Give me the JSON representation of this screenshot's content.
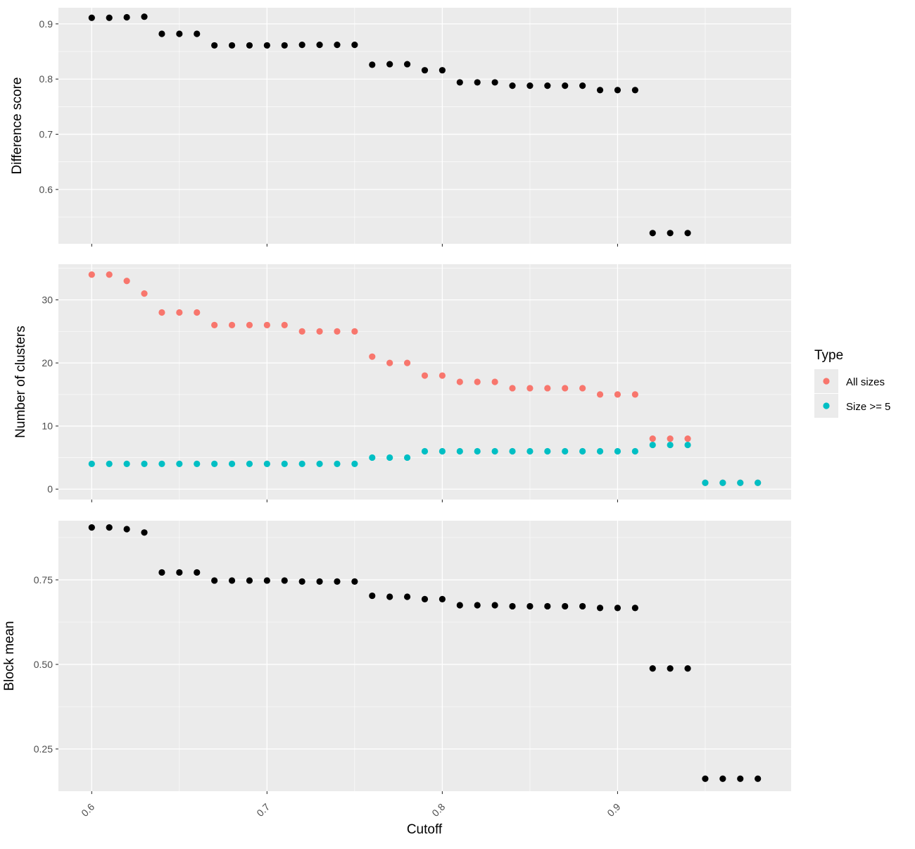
{
  "chart_data": {
    "type": "scatter",
    "layout": "faceted-vertical",
    "shared_x": true,
    "xlabel": "Cutoff",
    "xlim": [
      0.581,
      0.999
    ],
    "x_ticks": [
      0.6,
      0.7,
      0.8,
      0.9
    ],
    "x_tick_labels": [
      "0.6",
      "0.7",
      "0.8",
      "0.9"
    ],
    "grid": true,
    "panel_background": "#ebebeb",
    "grid_color": "#ffffff",
    "legend": {
      "title": "Type",
      "position": "right",
      "entries": [
        {
          "label": "All sizes",
          "color": "#f8766d"
        },
        {
          "label": "Size >= 5",
          "color": "#00bfc4"
        }
      ]
    },
    "panels": [
      {
        "ylabel": "Difference score",
        "ylim": [
          0.5016,
          0.9292
        ],
        "y_ticks": [
          0.6,
          0.7,
          0.8,
          0.9
        ],
        "y_tick_labels": [
          "0.6",
          "0.7",
          "0.8",
          "0.9"
        ],
        "show_x_tick_labels": false,
        "series": [
          {
            "color": "#000000",
            "x": [
              0.6,
              0.61,
              0.62,
              0.63,
              0.64,
              0.65,
              0.66,
              0.67,
              0.68,
              0.69,
              0.7,
              0.71,
              0.72,
              0.73,
              0.74,
              0.75,
              0.76,
              0.77,
              0.78,
              0.79,
              0.8,
              0.81,
              0.82,
              0.83,
              0.84,
              0.85,
              0.86,
              0.87,
              0.88,
              0.89,
              0.9,
              0.91,
              0.92,
              0.93,
              0.94
            ],
            "y": [
              0.911,
              0.911,
              0.912,
              0.913,
              0.882,
              0.882,
              0.882,
              0.861,
              0.861,
              0.861,
              0.861,
              0.861,
              0.862,
              0.862,
              0.862,
              0.862,
              0.826,
              0.827,
              0.827,
              0.816,
              0.816,
              0.794,
              0.794,
              0.794,
              0.788,
              0.788,
              0.788,
              0.788,
              0.788,
              0.78,
              0.78,
              0.78,
              0.521,
              0.521,
              0.521
            ]
          }
        ]
      },
      {
        "ylabel": "Number of clusters",
        "ylim": [
          -1.65,
          35.65
        ],
        "y_ticks": [
          0,
          10,
          20,
          30
        ],
        "y_tick_labels": [
          "0",
          "10",
          "20",
          "30"
        ],
        "show_x_tick_labels": false,
        "series": [
          {
            "name": "All sizes",
            "color": "#f8766d",
            "x": [
              0.6,
              0.61,
              0.62,
              0.63,
              0.64,
              0.65,
              0.66,
              0.67,
              0.68,
              0.69,
              0.7,
              0.71,
              0.72,
              0.73,
              0.74,
              0.75,
              0.76,
              0.77,
              0.78,
              0.79,
              0.8,
              0.81,
              0.82,
              0.83,
              0.84,
              0.85,
              0.86,
              0.87,
              0.88,
              0.89,
              0.9,
              0.91,
              0.92,
              0.93,
              0.94,
              0.95,
              0.96,
              0.97,
              0.98
            ],
            "y": [
              34,
              34,
              33,
              31,
              28,
              28,
              28,
              26,
              26,
              26,
              26,
              26,
              25,
              25,
              25,
              25,
              21,
              20,
              20,
              18,
              18,
              17,
              17,
              17,
              16,
              16,
              16,
              16,
              16,
              15,
              15,
              15,
              8,
              8,
              8,
              1,
              1,
              1,
              1
            ]
          },
          {
            "name": "Size >= 5",
            "color": "#00bfc4",
            "x": [
              0.6,
              0.61,
              0.62,
              0.63,
              0.64,
              0.65,
              0.66,
              0.67,
              0.68,
              0.69,
              0.7,
              0.71,
              0.72,
              0.73,
              0.74,
              0.75,
              0.76,
              0.77,
              0.78,
              0.79,
              0.8,
              0.81,
              0.82,
              0.83,
              0.84,
              0.85,
              0.86,
              0.87,
              0.88,
              0.89,
              0.9,
              0.91,
              0.92,
              0.93,
              0.94,
              0.95,
              0.96,
              0.97,
              0.98
            ],
            "y": [
              4,
              4,
              4,
              4,
              4,
              4,
              4,
              4,
              4,
              4,
              4,
              4,
              4,
              4,
              4,
              4,
              5,
              5,
              5,
              6,
              6,
              6,
              6,
              6,
              6,
              6,
              6,
              6,
              6,
              6,
              6,
              6,
              7,
              7,
              7,
              1,
              1,
              1,
              1
            ]
          }
        ]
      },
      {
        "ylabel": "Block mean",
        "ylim": [
          0.125,
          0.925
        ],
        "y_ticks": [
          0.25,
          0.5,
          0.75
        ],
        "y_tick_labels": [
          "0.25",
          "0.50",
          "0.75"
        ],
        "show_x_tick_labels": true,
        "series": [
          {
            "color": "#000000",
            "x": [
              0.6,
              0.61,
              0.62,
              0.63,
              0.64,
              0.65,
              0.66,
              0.67,
              0.68,
              0.69,
              0.7,
              0.71,
              0.72,
              0.73,
              0.74,
              0.75,
              0.76,
              0.77,
              0.78,
              0.79,
              0.8,
              0.81,
              0.82,
              0.83,
              0.84,
              0.85,
              0.86,
              0.87,
              0.88,
              0.89,
              0.9,
              0.91,
              0.92,
              0.93,
              0.94,
              0.95,
              0.96,
              0.97,
              0.98
            ],
            "y": [
              0.905,
              0.905,
              0.9,
              0.89,
              0.772,
              0.772,
              0.772,
              0.748,
              0.748,
              0.748,
              0.748,
              0.748,
              0.745,
              0.745,
              0.745,
              0.745,
              0.703,
              0.7,
              0.7,
              0.693,
              0.693,
              0.675,
              0.675,
              0.675,
              0.672,
              0.672,
              0.672,
              0.672,
              0.672,
              0.667,
              0.667,
              0.667,
              0.488,
              0.488,
              0.488,
              0.162,
              0.162,
              0.162,
              0.162
            ]
          }
        ]
      }
    ]
  }
}
